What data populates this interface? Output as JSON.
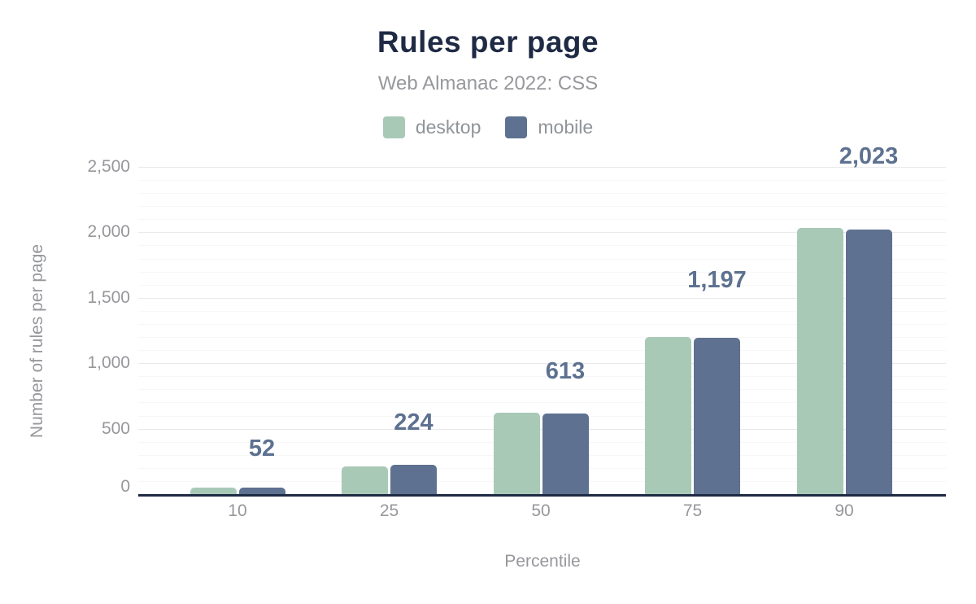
{
  "chart_data": {
    "type": "bar",
    "title": "Rules per page",
    "subtitle": "Web Almanac 2022: CSS",
    "xlabel": "Percentile",
    "ylabel": "Number of rules per page",
    "categories": [
      "10",
      "25",
      "50",
      "75",
      "90"
    ],
    "series": [
      {
        "name": "desktop",
        "color": "#a9c9b7",
        "values": [
          50,
          210,
          620,
          1200,
          2035
        ]
      },
      {
        "name": "mobile",
        "color": "#5e7190",
        "values": [
          52,
          224,
          613,
          1197,
          2023
        ]
      }
    ],
    "data_labels": [
      "52",
      "224",
      "613",
      "1,197",
      "2,023"
    ],
    "data_labels_series": "mobile",
    "y_ticks": [
      "0",
      "500",
      "1,000",
      "1,500",
      "2,000",
      "2,500"
    ],
    "ylim": [
      0,
      2500
    ],
    "grid": {
      "major_every": 500,
      "minor_every": 100
    },
    "legend_position": "top"
  },
  "colors": {
    "title_text": "#1f2a44",
    "subtitle_text": "#97989c",
    "axis_text": "#96979b",
    "axis_line": "#1f2a44",
    "grid_major": "#e9e9e9",
    "grid_minor": "#f7f7f7",
    "data_label_text": "#5d7190",
    "desktop_bar": "#a9c9b7",
    "mobile_bar": "#5e7190"
  }
}
